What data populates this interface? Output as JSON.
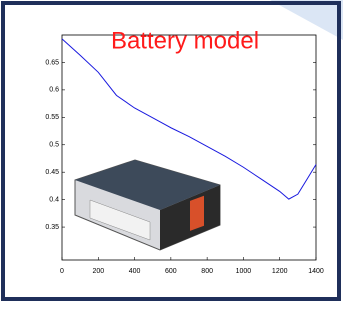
{
  "chart_data": {
    "type": "line",
    "title": "Battery model",
    "x": [
      0,
      100,
      200,
      300,
      400,
      500,
      600,
      700,
      800,
      900,
      1000,
      1100,
      1200,
      1250,
      1300,
      1350,
      1400
    ],
    "series": [
      {
        "color": "#1a1adf",
        "values": [
          0.693,
          0.663,
          0.632,
          0.59,
          0.567,
          0.549,
          0.531,
          0.515,
          0.497,
          0.479,
          0.459,
          0.437,
          0.415,
          0.401,
          0.41,
          0.437,
          0.464
        ]
      }
    ],
    "xlim": [
      0,
      1400
    ],
    "xticks": [
      0,
      200,
      400,
      600,
      800,
      1000,
      1200,
      1400
    ],
    "ylim": [
      0.29,
      0.7
    ],
    "yticks": [
      0.35,
      0.4,
      0.45,
      0.5,
      0.55,
      0.6,
      0.65
    ]
  }
}
